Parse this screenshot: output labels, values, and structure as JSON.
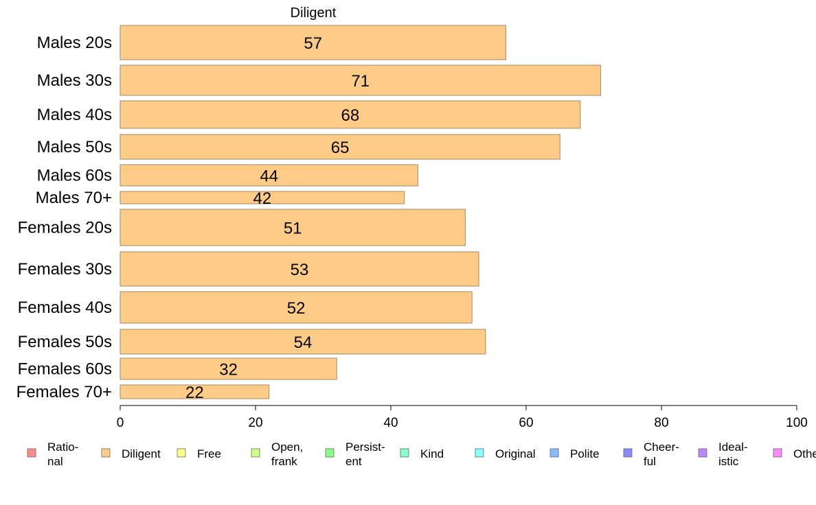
{
  "chart_data": {
    "type": "bar",
    "orientation": "horizontal",
    "title": "Diligent",
    "categories": [
      "Males 20s",
      "Males 30s",
      "Males 40s",
      "Males 50s",
      "Males 60s",
      "Males 70+",
      "Females 20s",
      "Females 30s",
      "Females 40s",
      "Females 50s",
      "Females 60s",
      "Females 70+"
    ],
    "values": [
      57,
      71,
      68,
      65,
      44,
      42,
      51,
      53,
      52,
      54,
      32,
      22
    ],
    "xlim": [
      0,
      100
    ],
    "xticks": [
      0,
      20,
      40,
      60,
      80,
      100
    ],
    "xlabel": "",
    "ylabel": "",
    "grid": false,
    "bar_color": "#FFCC88",
    "bar_edge_color": "#A08A6A",
    "legend_position": "bottom",
    "legend": [
      {
        "label": "Ratio-\nnal",
        "color": "#FF8C8C"
      },
      {
        "label": "Diligent",
        "color": "#FFCC88"
      },
      {
        "label": "Free",
        "color": "#FFFF88"
      },
      {
        "label": "Open,\nfrank",
        "color": "#CCFF88"
      },
      {
        "label": "Persist-\nent",
        "color": "#88FF88"
      },
      {
        "label": "Kind",
        "color": "#88FFCC"
      },
      {
        "label": "Original",
        "color": "#88FFFF"
      },
      {
        "label": "Polite",
        "color": "#88BBFF"
      },
      {
        "label": "Cheer-\nful",
        "color": "#8888FF"
      },
      {
        "label": "Ideal-\nistic",
        "color": "#BB88FF"
      },
      {
        "label": "Other",
        "color": "#FF88FF"
      }
    ]
  }
}
